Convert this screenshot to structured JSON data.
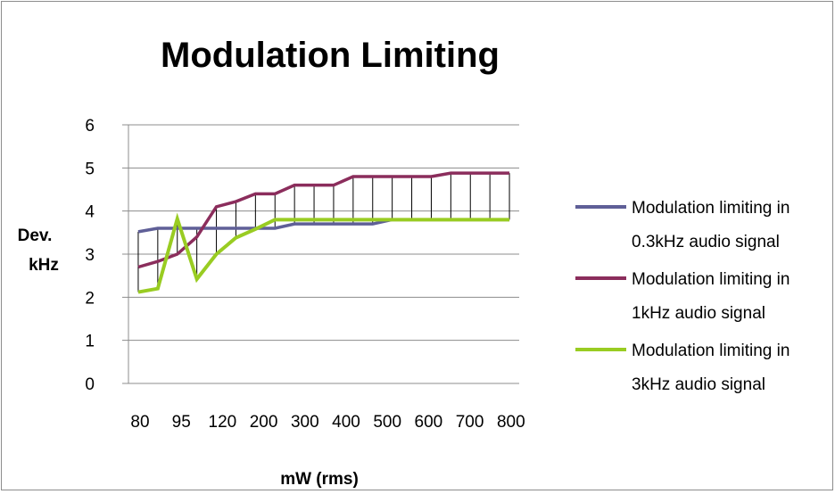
{
  "chart_data": {
    "type": "line",
    "title": "Modulation Limiting",
    "xlabel": "mW (rms)",
    "ylabel": [
      "Dev.",
      "kHz"
    ],
    "x_tick_labels": [
      "80",
      "95",
      "120",
      "200",
      "300",
      "400",
      "500",
      "600",
      "700",
      "800"
    ],
    "n_points": 20,
    "ylim": [
      0,
      6
    ],
    "y_ticks": [
      "0",
      "1",
      "2",
      "3",
      "4",
      "5",
      "6"
    ],
    "grid": "horizontal",
    "legend_position": "right",
    "series": [
      {
        "name": [
          "Modulation limiting in",
          "0.3kHz audio signal"
        ],
        "color": "#5f5f97",
        "values": [
          3.52,
          3.6,
          3.6,
          3.6,
          3.6,
          3.6,
          3.6,
          3.6,
          3.7,
          3.7,
          3.7,
          3.7,
          3.7,
          3.8,
          3.8,
          3.8,
          3.8,
          3.8,
          3.8,
          3.8
        ]
      },
      {
        "name": [
          "Modulation limiting in",
          "1kHz audio signal"
        ],
        "color": "#8b2d5c",
        "values": [
          2.7,
          2.83,
          3.0,
          3.4,
          4.1,
          4.22,
          4.4,
          4.4,
          4.6,
          4.6,
          4.6,
          4.8,
          4.8,
          4.8,
          4.8,
          4.8,
          4.88,
          4.88,
          4.88,
          4.88
        ]
      },
      {
        "name": [
          "Modulation limiting in",
          "3kHz audio signal"
        ],
        "color": "#99cc22",
        "values": [
          2.12,
          2.2,
          3.82,
          2.42,
          3.0,
          3.38,
          3.58,
          3.8,
          3.8,
          3.8,
          3.8,
          3.8,
          3.8,
          3.8,
          3.8,
          3.8,
          3.8,
          3.8,
          3.8,
          3.8
        ]
      }
    ],
    "high_low_lines": true
  }
}
